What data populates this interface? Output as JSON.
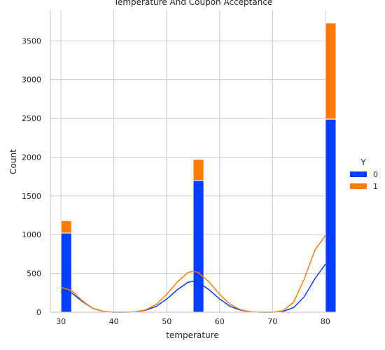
{
  "chart_data": {
    "type": "bar",
    "title": "Temperature And Coupon Acceptance",
    "xlabel": "temperature",
    "ylabel": "Count",
    "xlim": [
      28,
      82
    ],
    "ylim": [
      0,
      3900
    ],
    "xticks": [
      30,
      40,
      50,
      60,
      70,
      80
    ],
    "yticks": [
      0,
      500,
      1000,
      1500,
      2000,
      2500,
      3000,
      3500
    ],
    "grid": true,
    "stacked": true,
    "bar_width": 2,
    "legend": {
      "title": "Y",
      "placement": "right"
    },
    "series": [
      {
        "name": "0",
        "color": "#023eff",
        "x": [
          30,
          55,
          80
        ],
        "values": [
          1020,
          1700,
          2490
        ]
      },
      {
        "name": "1",
        "color": "#ff7c00",
        "x": [
          30,
          55,
          80
        ],
        "values": [
          160,
          270,
          1240
        ]
      }
    ],
    "kde": [
      {
        "series": "0",
        "color": "#023eff",
        "x": [
          30,
          32,
          34,
          36,
          38,
          40,
          42,
          44,
          46,
          48,
          50,
          52,
          54,
          55,
          56,
          58,
          60,
          62,
          64,
          66,
          68,
          70,
          72,
          74,
          76,
          78,
          80
        ],
        "values": [
          260,
          250,
          140,
          50,
          10,
          0,
          0,
          5,
          25,
          75,
          170,
          290,
          385,
          400,
          385,
          290,
          170,
          75,
          25,
          5,
          0,
          0,
          10,
          60,
          200,
          430,
          620
        ]
      },
      {
        "series": "1",
        "color": "#ff7c00",
        "x": [
          30,
          32,
          34,
          36,
          38,
          40,
          42,
          44,
          46,
          48,
          50,
          52,
          54,
          55,
          56,
          58,
          60,
          62,
          64,
          66,
          68,
          70,
          72,
          74,
          76,
          78,
          80
        ],
        "values": [
          320,
          280,
          150,
          50,
          10,
          0,
          0,
          5,
          30,
          100,
          230,
          390,
          510,
          530,
          510,
          390,
          230,
          100,
          30,
          5,
          0,
          0,
          20,
          130,
          430,
          800,
          990
        ]
      }
    ]
  }
}
